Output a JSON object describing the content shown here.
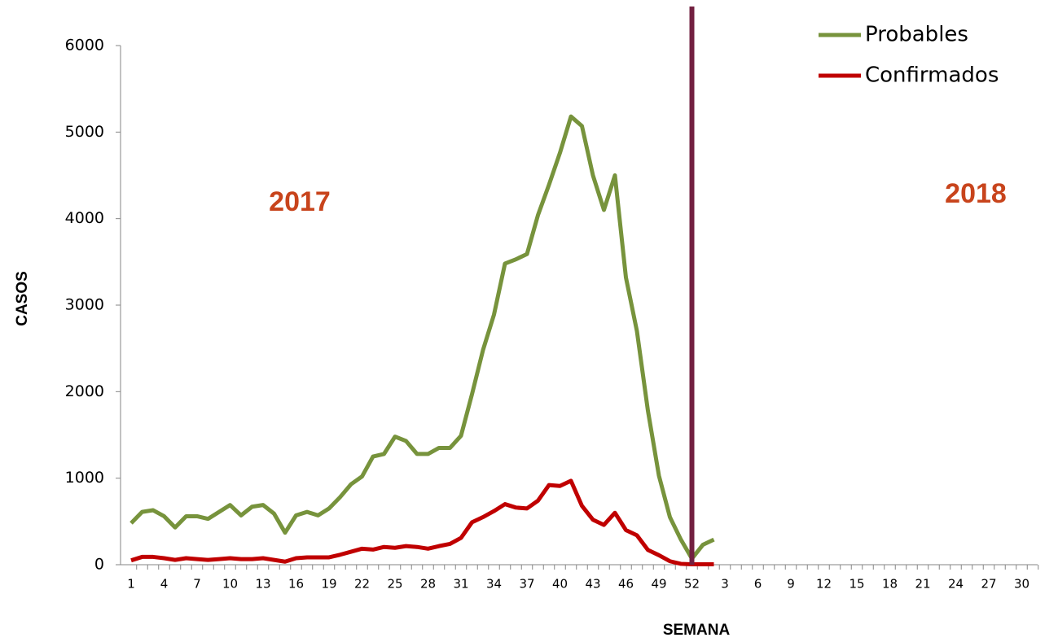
{
  "chart_data": {
    "type": "line",
    "y_label": "CASOS",
    "x_label": "SEMANA",
    "annotations": [
      "2017",
      "2018"
    ],
    "categories": [
      1,
      null,
      null,
      4,
      null,
      null,
      7,
      null,
      null,
      10,
      null,
      null,
      13,
      null,
      null,
      16,
      null,
      null,
      19,
      null,
      null,
      22,
      null,
      null,
      25,
      null,
      null,
      28,
      null,
      null,
      31,
      null,
      null,
      34,
      null,
      null,
      37,
      null,
      null,
      40,
      null,
      null,
      43,
      null,
      null,
      46,
      null,
      null,
      49,
      null,
      null,
      52,
      null,
      null,
      3,
      null,
      null,
      6,
      null,
      null,
      9,
      null,
      null,
      12,
      null,
      null,
      15,
      null,
      null,
      18,
      null,
      null,
      21,
      null,
      null,
      24,
      null,
      null,
      27,
      null,
      null,
      30,
      null
    ],
    "series": [
      {
        "name": "Probables",
        "color": "#77933c",
        "values": [
          480,
          610,
          630,
          560,
          430,
          560,
          560,
          530,
          610,
          690,
          570,
          670,
          690,
          590,
          370,
          570,
          610,
          570,
          650,
          780,
          930,
          1020,
          1250,
          1280,
          1480,
          1430,
          1280,
          1280,
          1350,
          1350,
          1490,
          1970,
          2480,
          2890,
          3480,
          3530,
          3590,
          4040,
          4390,
          4760,
          5180,
          5070,
          4500,
          4100,
          4500,
          3320,
          2700,
          1780,
          1030,
          550,
          290,
          70,
          230,
          290,
          null,
          null,
          null,
          null,
          null,
          null,
          null,
          null,
          null,
          null,
          null,
          null,
          null,
          null,
          null,
          null,
          null,
          null,
          null,
          null,
          null,
          null,
          null,
          null,
          null,
          null,
          null,
          null,
          null
        ]
      },
      {
        "name": "Confirmados",
        "color": "#c00000",
        "values": [
          50,
          90,
          90,
          75,
          55,
          75,
          65,
          55,
          65,
          75,
          65,
          65,
          75,
          55,
          35,
          75,
          85,
          85,
          85,
          115,
          150,
          185,
          175,
          205,
          195,
          215,
          205,
          185,
          215,
          240,
          310,
          490,
          550,
          620,
          700,
          660,
          650,
          740,
          920,
          910,
          970,
          680,
          520,
          460,
          600,
          400,
          340,
          170,
          110,
          40,
          10,
          5,
          5,
          5,
          null,
          null,
          null,
          null,
          null,
          null,
          null,
          null,
          null,
          null,
          null,
          null,
          null,
          null,
          null,
          null,
          null,
          null,
          null,
          null,
          null,
          null,
          null,
          null,
          null,
          null,
          null,
          null,
          null
        ]
      }
    ],
    "ylim": [
      0,
      6000
    ],
    "yticks": [
      0,
      1000,
      2000,
      3000,
      4000,
      5000,
      6000
    ],
    "grid": false,
    "legend": "top-right"
  }
}
